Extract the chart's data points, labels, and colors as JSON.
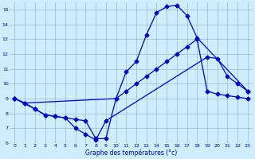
{
  "title": "Graphe des températures (°c)",
  "bg_color": "#cceeff",
  "line_color": "#0000cc",
  "grid_color": "#99bbcc",
  "ylim": [
    6,
    15.5
  ],
  "xlim": [
    -0.5,
    23.5
  ],
  "yticks": [
    6,
    7,
    8,
    9,
    10,
    11,
    12,
    13,
    14,
    15
  ],
  "xticks": [
    0,
    1,
    2,
    3,
    4,
    5,
    6,
    7,
    8,
    9,
    10,
    11,
    12,
    13,
    14,
    15,
    16,
    17,
    18,
    19,
    20,
    21,
    22,
    23
  ],
  "line1_x": [
    0,
    1,
    2,
    3,
    4,
    5,
    6,
    7,
    8,
    9,
    10,
    11,
    12,
    13,
    14,
    15,
    16,
    17,
    18,
    23
  ],
  "line1_y": [
    9.0,
    8.7,
    8.3,
    7.9,
    7.8,
    7.7,
    7.6,
    7.5,
    6.3,
    6.3,
    9.0,
    10.8,
    11.5,
    13.3,
    14.8,
    15.2,
    15.3,
    14.6,
    13.1,
    9.5
  ],
  "line2_x": [
    0,
    1,
    10,
    11,
    12,
    13,
    14,
    15,
    16,
    17,
    18,
    19,
    20,
    21,
    22,
    23
  ],
  "line2_y": [
    9.0,
    8.7,
    9.0,
    9.5,
    10.0,
    10.5,
    11.0,
    11.5,
    12.0,
    12.5,
    13.0,
    9.5,
    9.3,
    9.2,
    9.1,
    9.0
  ],
  "line3_x": [
    0,
    2,
    3,
    4,
    5,
    6,
    7,
    8,
    9,
    19,
    20,
    21,
    22,
    23
  ],
  "line3_y": [
    9.0,
    8.3,
    7.9,
    7.8,
    7.7,
    7.0,
    6.6,
    6.2,
    7.5,
    11.8,
    11.7,
    10.5,
    10.0,
    9.5
  ]
}
